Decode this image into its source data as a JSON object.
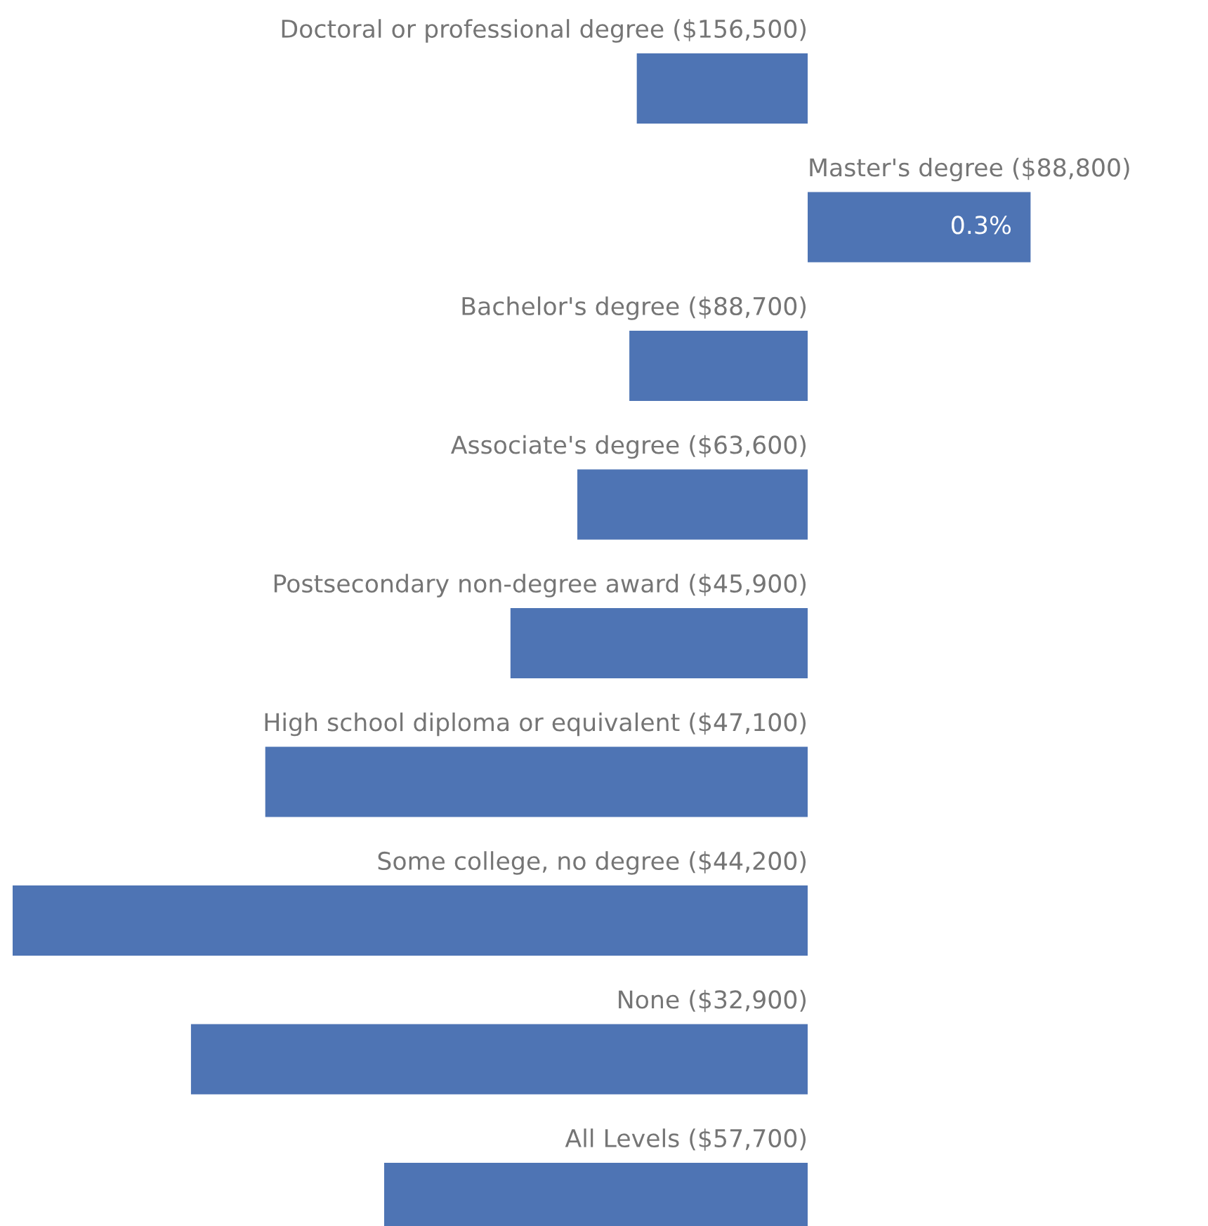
{
  "chart_data": {
    "type": "bar",
    "orientation": "horizontal",
    "categories": [
      "Doctoral or professional degree ($156,500)",
      "Master's degree ($88,800)",
      "Bachelor's degree ($88,700)",
      "Associate's degree ($63,600)",
      "Postsecondary non-degree award ($45,900)",
      "High school diploma or equivalent ($47,100)",
      "Some college, no degree ($44,200)",
      "None ($32,900)",
      "All Levels ($57,700)"
    ],
    "values": [
      -0.23,
      0.3,
      -0.24,
      -0.31,
      -0.4,
      -0.73,
      -1.07,
      -0.83,
      -0.57
    ],
    "value_labels": [
      null,
      "0.3%",
      null,
      null,
      null,
      null,
      null,
      null,
      null
    ],
    "color": "#4e74b4"
  }
}
